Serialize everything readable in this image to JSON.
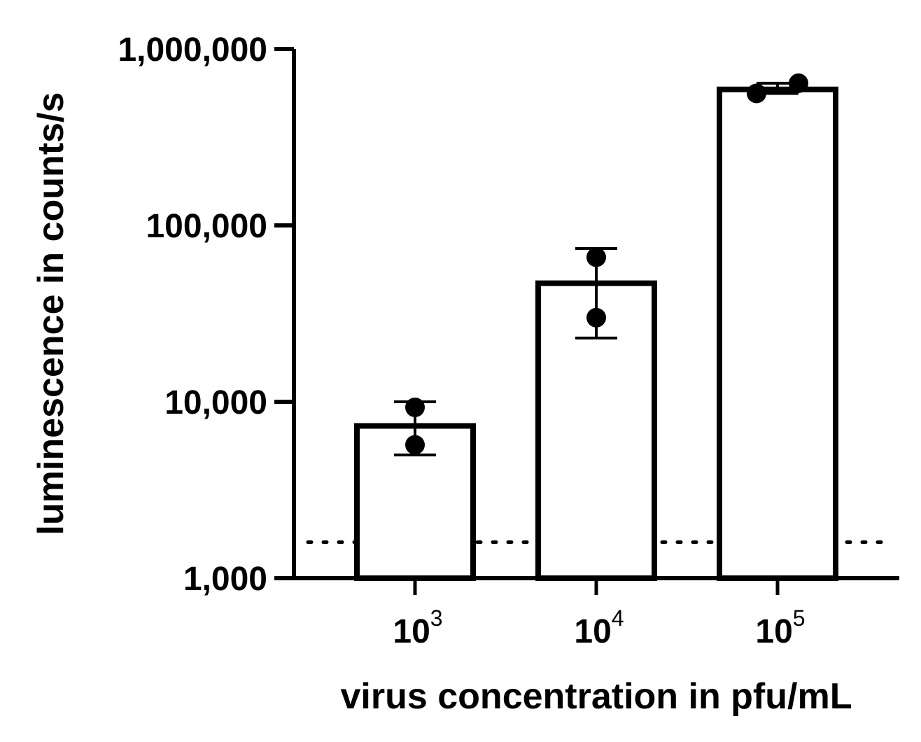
{
  "chart_data": {
    "type": "bar",
    "title": "",
    "xlabel": "virus concentration in pfu/mL",
    "ylabel": "luminescence in counts/s",
    "y_scale": "log",
    "ylim": [
      1000,
      1000000
    ],
    "y_ticks": [
      {
        "value": 1000,
        "label": "1,000"
      },
      {
        "value": 10000,
        "label": "10,000"
      },
      {
        "value": 100000,
        "label": "100,000"
      },
      {
        "value": 1000000,
        "label": "1,000,000"
      }
    ],
    "categories": [
      {
        "base": "10",
        "exp": "3"
      },
      {
        "base": "10",
        "exp": "4"
      },
      {
        "base": "10",
        "exp": "5"
      }
    ],
    "values": [
      7300,
      47000,
      590000
    ],
    "error_bars": [
      {
        "low": 5000,
        "high": 10000
      },
      {
        "low": 23000,
        "high": 74000
      },
      {
        "low": 560000,
        "high": 640000
      }
    ],
    "points": [
      [
        9300,
        5700
      ],
      [
        66000,
        30000
      ],
      [
        560000,
        640000
      ]
    ],
    "reference_line": {
      "value": 1600,
      "style": "dotted"
    },
    "bar_fill": "#ffffff",
    "line_color": "#000000",
    "grid": false,
    "legend": "none"
  }
}
